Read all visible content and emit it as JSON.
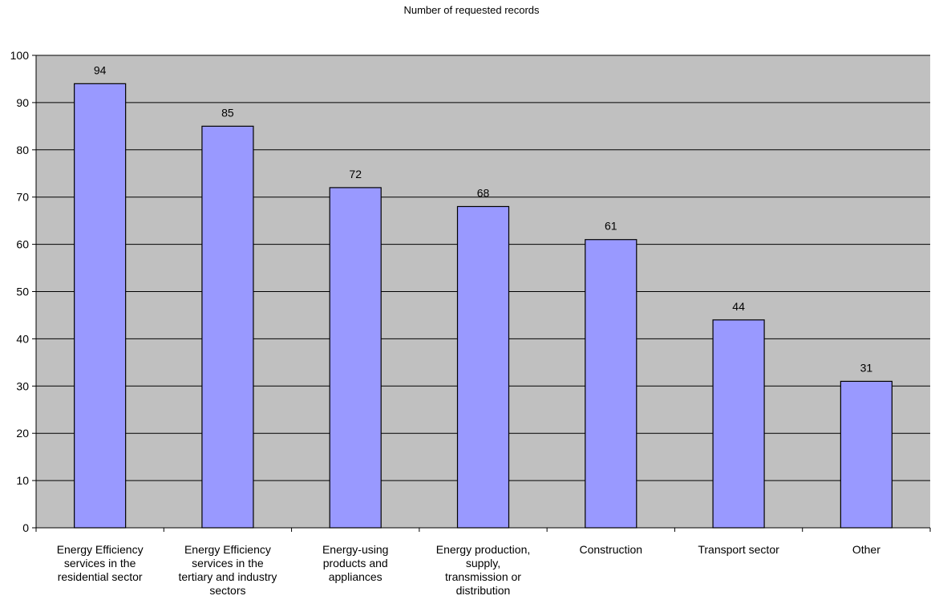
{
  "chart_data": {
    "type": "bar",
    "title": "Number of requested records",
    "xlabel": "",
    "ylabel": "",
    "categories": [
      "Energy Efficiency services in the residential sector",
      "Energy Efficiency services in the tertiary and industry sectors",
      "Energy-using products and appliances",
      "Energy production, supply, transmission or distribution",
      "Construction",
      "Transport sector",
      "Other"
    ],
    "category_lines": [
      [
        "Energy Efficiency",
        "services in the",
        "residential sector"
      ],
      [
        "Energy Efficiency",
        "services in the",
        "tertiary and industry",
        "sectors"
      ],
      [
        "Energy-using",
        "products and",
        "appliances"
      ],
      [
        "Energy production,",
        "supply,",
        "transmission or",
        "distribution"
      ],
      [
        "Construction"
      ],
      [
        "Transport sector"
      ],
      [
        "Other"
      ]
    ],
    "values": [
      94,
      85,
      72,
      68,
      61,
      44,
      31
    ],
    "ylim": [
      0,
      100
    ],
    "yticks": [
      0,
      10,
      20,
      30,
      40,
      50,
      60,
      70,
      80,
      90,
      100
    ],
    "grid": true,
    "legend": "none",
    "colors": {
      "plot_background": "#c0c0c0",
      "bar_fill": "#9999ff",
      "bar_stroke": "#000000",
      "gridline": "#000000"
    }
  }
}
